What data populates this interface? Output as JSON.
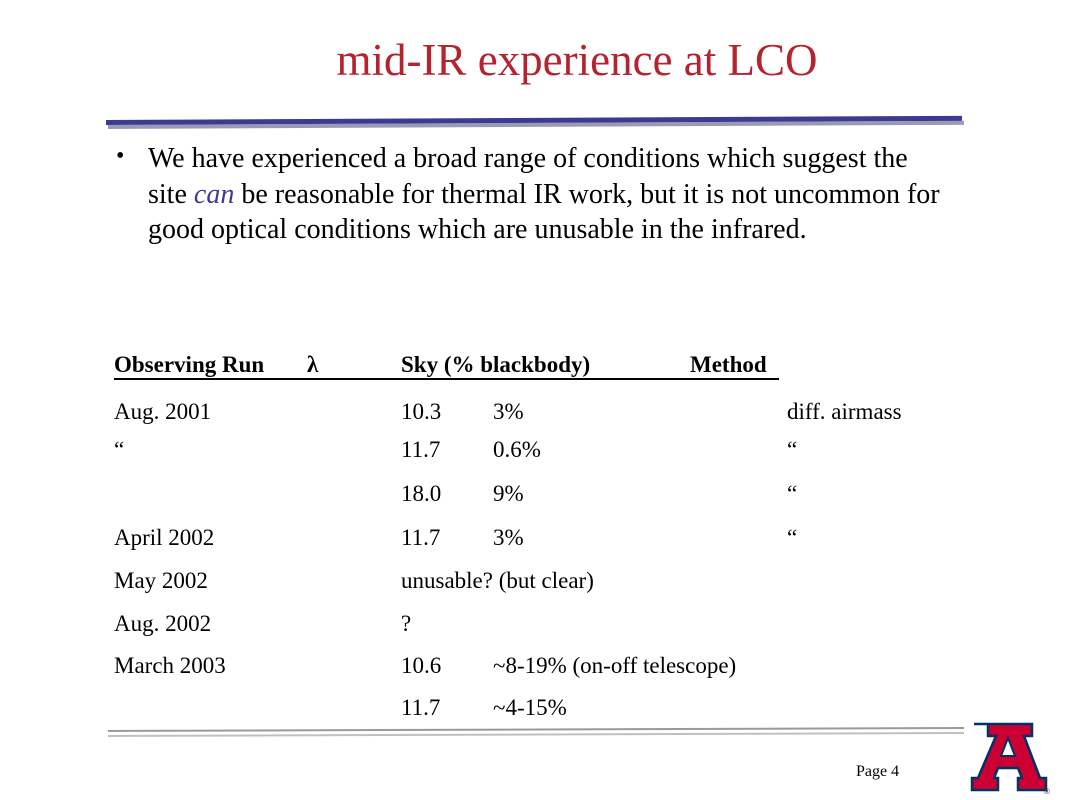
{
  "slide": {
    "title": "mid-IR experience at LCO",
    "bullet": {
      "before": "We have experienced a broad range of conditions which suggest the site ",
      "emphasis": "can",
      "after": " be reasonable for thermal IR work, but it is not uncommon for good optical conditions which are unusable in the infrared."
    },
    "table": {
      "headers": {
        "run": "Observing Run",
        "lambda": "λ",
        "sky": "Sky (% blackbody)",
        "method": "Method"
      },
      "rows": [
        {
          "run": "Aug. 2001",
          "lambda": "10.3",
          "sky": "3%",
          "method": "diff. airmass"
        },
        {
          "run": "“",
          "lambda": "11.7",
          "sky": "0.6%",
          "method": "“"
        },
        {
          "run": "",
          "lambda": "18.0",
          "sky": "9%",
          "method": "“"
        },
        {
          "run": "April 2002",
          "lambda": "11.7",
          "sky": "3%",
          "method": "“"
        },
        {
          "run": "May 2002",
          "lambda": "unusable?  (but clear)",
          "sky": "",
          "method": ""
        },
        {
          "run": "Aug. 2002",
          "lambda": "?",
          "sky": "",
          "method": ""
        },
        {
          "run": "March 2003",
          "lambda": "10.6",
          "sky": "~8-19% (on-off telescope)",
          "method": ""
        },
        {
          "run": "",
          "lambda": "11.7",
          "sky": "~4-15%",
          "method": ""
        }
      ]
    },
    "page_label": "Page 4",
    "colors": {
      "title": "#b5232f",
      "rule": "#3b3b94",
      "emphasis": "#3b3b94",
      "logo_red": "#cc0033",
      "logo_blue": "#003366"
    }
  }
}
